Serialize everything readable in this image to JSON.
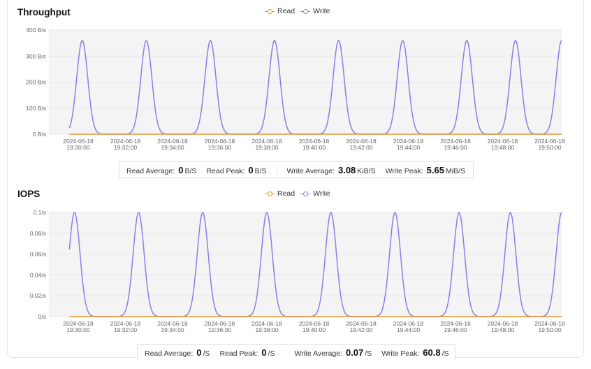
{
  "colors": {
    "read": "#e8952c",
    "write": "#8e7ce8",
    "grid": "#e6e6e6",
    "plot_bg": "#f4f4f4"
  },
  "throughput": {
    "title": "Throughput",
    "legend": {
      "read": "Read",
      "write": "Write"
    },
    "stats": {
      "read_avg_label": "Read Average:",
      "read_avg_value": "0",
      "read_avg_unit": "B/S",
      "read_peak_label": "Read Peak:",
      "read_peak_value": "0",
      "read_peak_unit": "B/S",
      "write_avg_label": "Write Average:",
      "write_avg_value": "3.08",
      "write_avg_unit": "KiB/S",
      "write_peak_label": "Write Peak:",
      "write_peak_value": "5.65",
      "write_peak_unit": "MiB/S"
    }
  },
  "iops": {
    "title": "IOPS",
    "legend": {
      "read": "Read",
      "write": "Write"
    },
    "stats": {
      "read_avg_label": "Read Average:",
      "read_avg_value": "0",
      "read_avg_unit": "/S",
      "read_peak_label": "Read Peak:",
      "read_peak_value": "0",
      "read_peak_unit": "/S",
      "write_avg_label": "Write Average:",
      "write_avg_value": "0.07",
      "write_avg_unit": "/S",
      "write_peak_label": "Write Peak:",
      "write_peak_value": "60.8",
      "write_peak_unit": "/S"
    }
  },
  "chart_data": [
    {
      "type": "line",
      "title": "Throughput",
      "x_tick_labels": [
        [
          "2024-06-18",
          "19:30:00"
        ],
        [
          "2024-06-18",
          "19:32:00"
        ],
        [
          "2024-06-18",
          "19:34:00"
        ],
        [
          "2024-06-18",
          "19:36:00"
        ],
        [
          "2024-06-18",
          "19:38:00"
        ],
        [
          "2024-06-18",
          "19:40:00"
        ],
        [
          "2024-06-18",
          "19:42:00"
        ],
        [
          "2024-06-18",
          "19:44:00"
        ],
        [
          "2024-06-18",
          "19:46:00"
        ],
        [
          "2024-06-18",
          "19:48:00"
        ],
        [
          "2024-06-18",
          "19:50:00"
        ]
      ],
      "x_range_minutes": [
        0,
        20
      ],
      "y_tick_labels": [
        "0 B/s",
        "100 B/s",
        "200 B/s",
        "300 B/s",
        "400 B/s"
      ],
      "ylim": [
        0,
        400
      ],
      "grid": true,
      "legend_position": "top-center",
      "series": [
        {
          "name": "Read",
          "color": "#e8952c",
          "x_minutes": [
            0,
            20
          ],
          "values": [
            0,
            0
          ]
        },
        {
          "name": "Write",
          "color": "#8e7ce8",
          "x_minutes": [
            0.5,
            1.3,
            2.0,
            3.8,
            4.5,
            5.3,
            6.0,
            7.8,
            8.5,
            9.3,
            10.0,
            11.8,
            12.5,
            13.3,
            14.0,
            15.8,
            16.5,
            17.3,
            18.0,
            18.4,
            19.0,
            20.0
          ],
          "values": [
            0,
            360,
            0,
            0,
            360,
            0,
            0,
            0,
            360,
            0,
            0,
            0,
            360,
            0,
            0,
            0,
            360,
            0,
            360,
            0,
            0,
            360
          ],
          "peak_minutes": [
            1.3,
            3.8,
            6.3,
            8.8,
            11.3,
            13.8,
            16.3,
            18.2,
            20.0
          ],
          "peak_value": 360
        }
      ]
    },
    {
      "type": "line",
      "title": "IOPS",
      "x_tick_labels": [
        [
          "2024-06-18",
          "19:30:00"
        ],
        [
          "2024-06-18",
          "19:32:00"
        ],
        [
          "2024-06-18",
          "19:34:00"
        ],
        [
          "2024-06-18",
          "19:36:00"
        ],
        [
          "2024-06-18",
          "19:38:00"
        ],
        [
          "2024-06-18",
          "19:40:00"
        ],
        [
          "2024-06-18",
          "19:42:00"
        ],
        [
          "2024-06-18",
          "19:44:00"
        ],
        [
          "2024-06-18",
          "19:46:00"
        ],
        [
          "2024-06-18",
          "19:48:00"
        ],
        [
          "2024-06-18",
          "19:50:00"
        ]
      ],
      "x_range_minutes": [
        0,
        20
      ],
      "y_tick_labels": [
        "0/s",
        "0.02/s",
        "0.04/s",
        "0.06/s",
        "0.08/s",
        "0.1/s"
      ],
      "ylim": [
        0,
        0.1
      ],
      "grid": true,
      "legend_position": "top-center",
      "series": [
        {
          "name": "Read",
          "color": "#e8952c",
          "x_minutes": [
            0,
            20
          ],
          "values": [
            0,
            0
          ]
        },
        {
          "name": "Write",
          "color": "#8e7ce8",
          "peak_minutes": [
            1.0,
            3.5,
            6.0,
            8.5,
            11.0,
            13.5,
            16.0,
            18.0,
            20.0
          ],
          "peak_value": 0.1
        }
      ]
    }
  ]
}
